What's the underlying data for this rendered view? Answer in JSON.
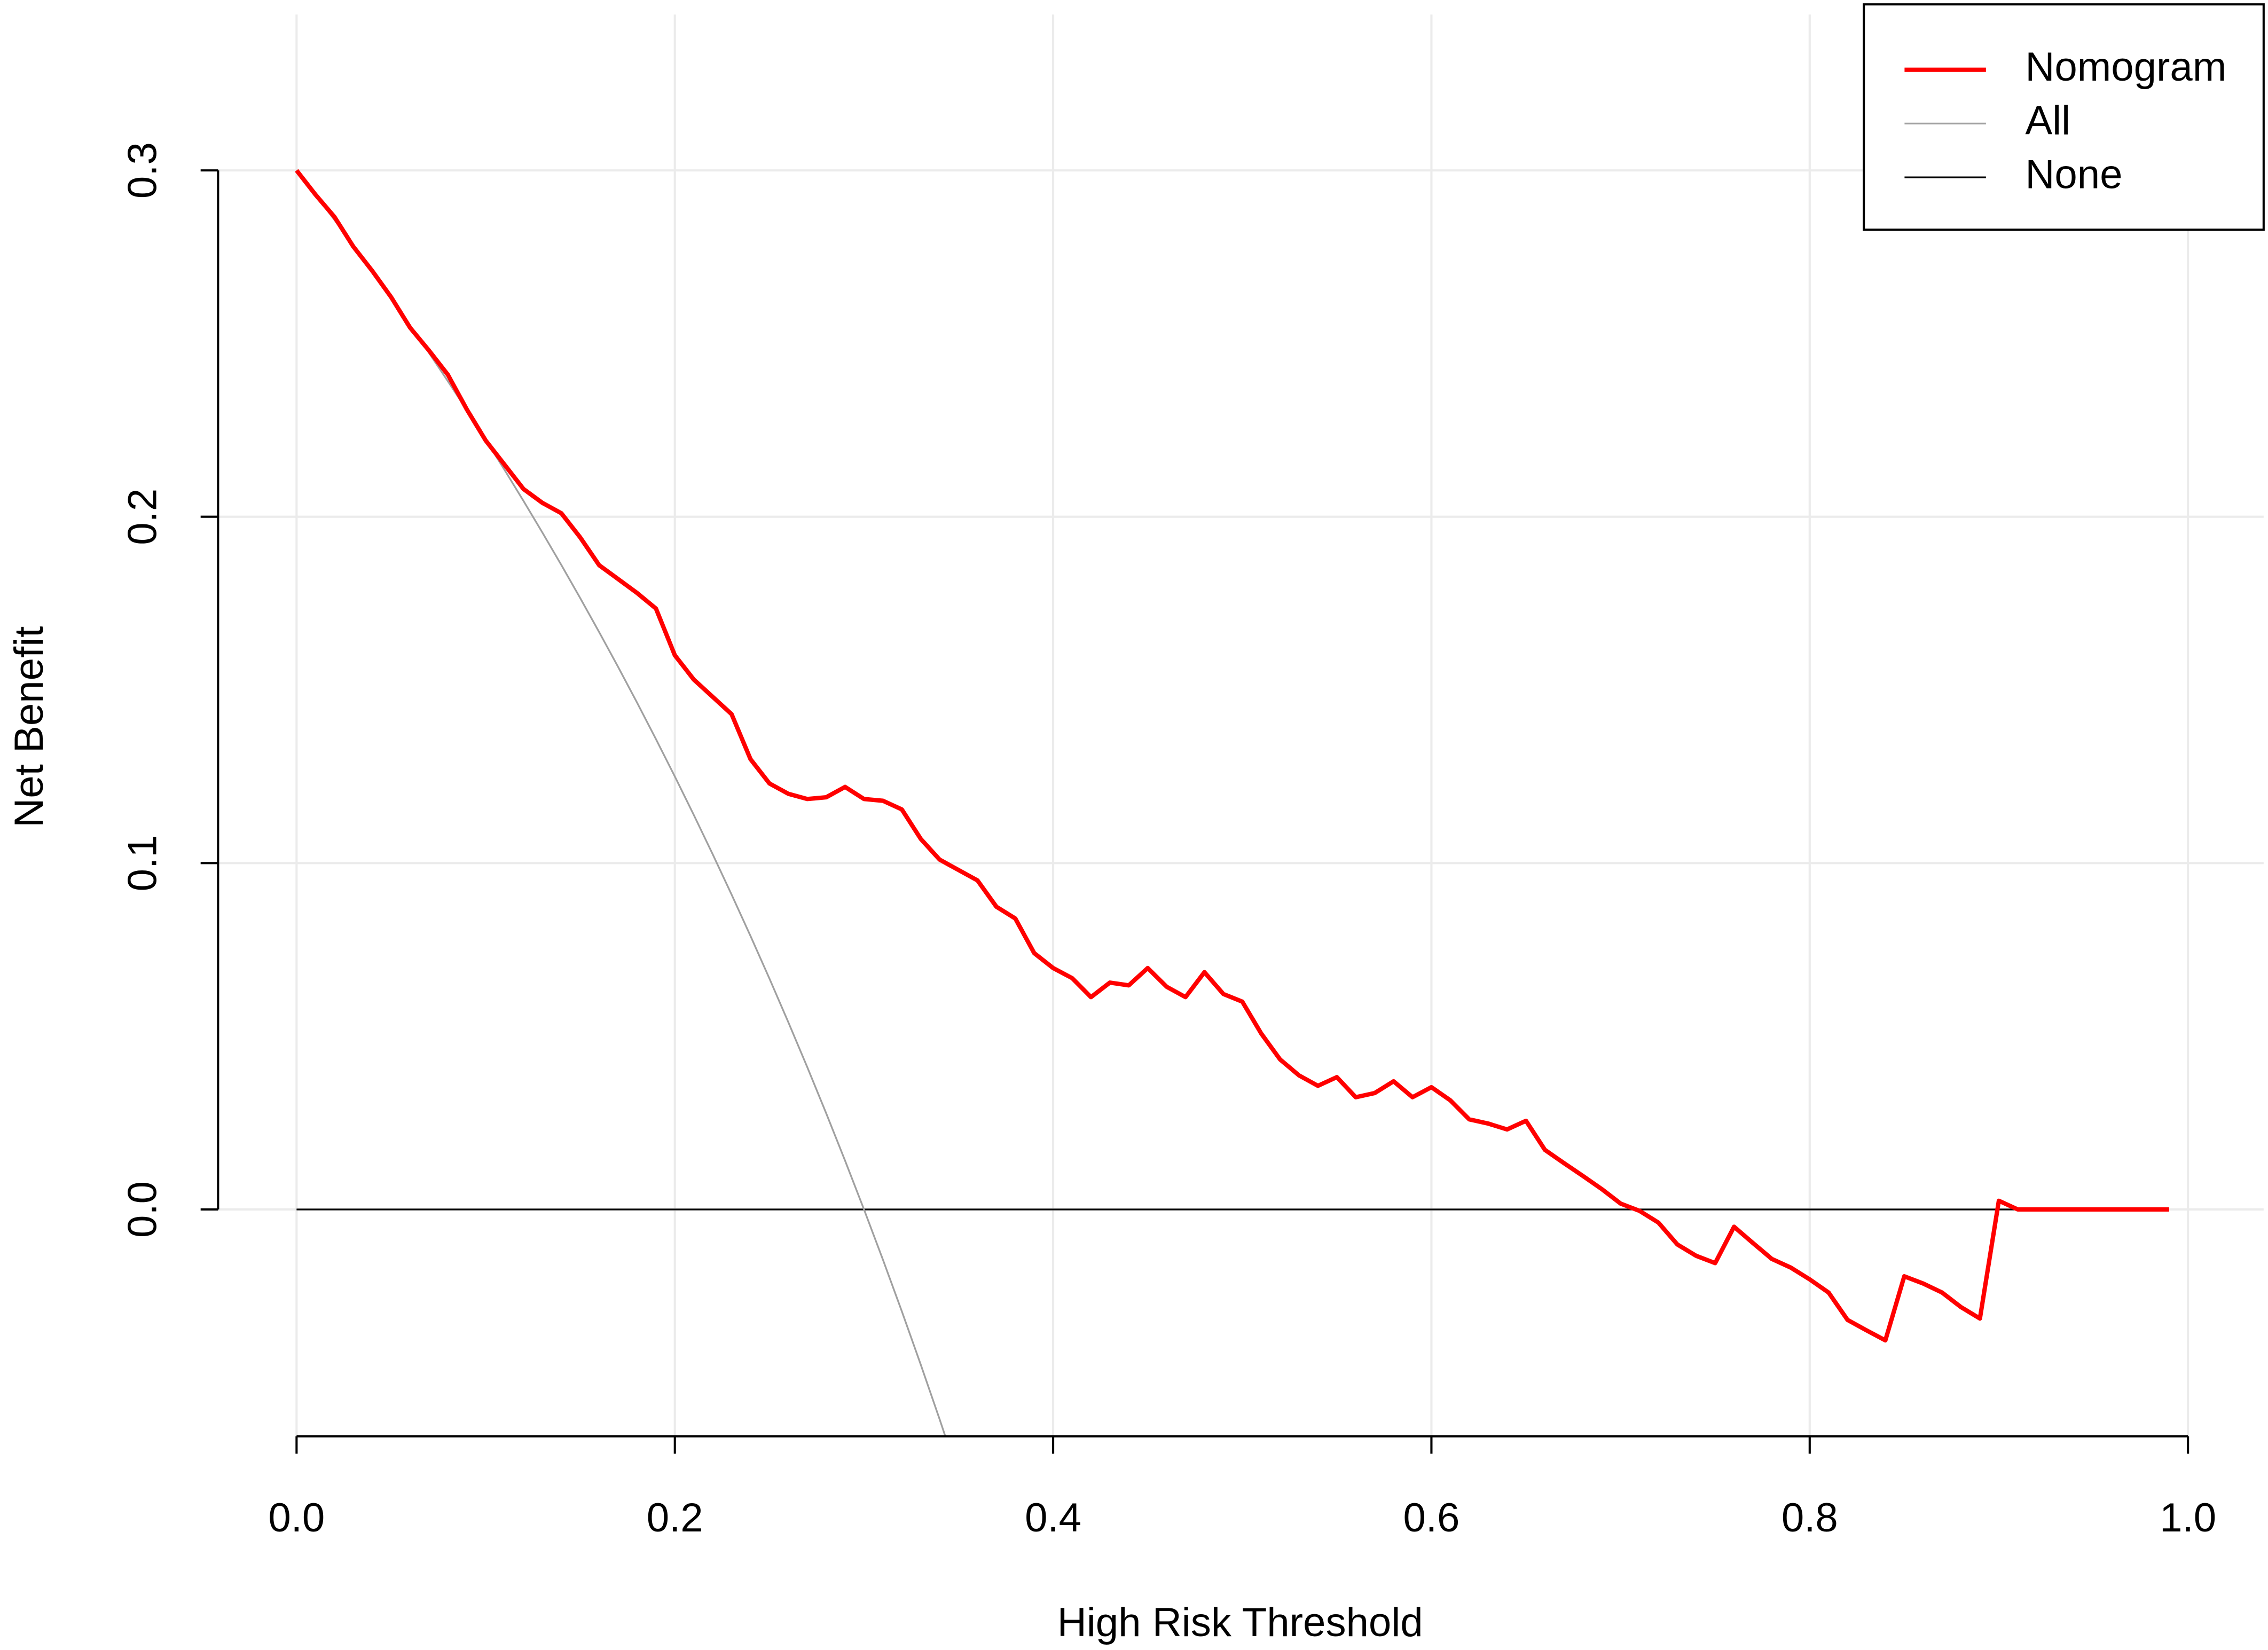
{
  "chart_data": {
    "type": "line",
    "xlabel": "High Risk Threshold",
    "ylabel": "Net Benefit",
    "xlim": [
      -0.0415,
      1.04
    ],
    "ylim": [
      -0.0655,
      0.345
    ],
    "xticks": [
      {
        "value": 0,
        "label": "0.0"
      },
      0.2,
      0.4,
      0.6,
      0.8,
      {
        "value": 1,
        "label": "1.0"
      }
    ],
    "yticks": [
      {
        "value": 0,
        "label": "0.0"
      },
      0.1,
      0.2,
      0.3
    ],
    "grid": true,
    "legend": "top-right",
    "series": [
      {
        "name": "Nomogram",
        "color": "#ff0000",
        "width": 3,
        "x": [
          0,
          0.01,
          0.02,
          0.03,
          0.04,
          0.05,
          0.06,
          0.07,
          0.08,
          0.09,
          0.1,
          0.11,
          0.12,
          0.13,
          0.14,
          0.15,
          0.16,
          0.17,
          0.18,
          0.19,
          0.2,
          0.21,
          0.22,
          0.23,
          0.24,
          0.25,
          0.26,
          0.27,
          0.28,
          0.29,
          0.3,
          0.31,
          0.32,
          0.33,
          0.34,
          0.35,
          0.36,
          0.37,
          0.38,
          0.39,
          0.4,
          0.41,
          0.42,
          0.43,
          0.44,
          0.45,
          0.46,
          0.47,
          0.48,
          0.49,
          0.5,
          0.51,
          0.52,
          0.53,
          0.54,
          0.55,
          0.56,
          0.57,
          0.58,
          0.59,
          0.6,
          0.61,
          0.62,
          0.63,
          0.64,
          0.65,
          0.66,
          0.67,
          0.68,
          0.69,
          0.7,
          0.71,
          0.72,
          0.73,
          0.74,
          0.75,
          0.76,
          0.77,
          0.78,
          0.79,
          0.8,
          0.81,
          0.82,
          0.83,
          0.84,
          0.85,
          0.86,
          0.87,
          0.88,
          0.89,
          0.9,
          0.91,
          0.92,
          0.93,
          0.94,
          0.95,
          0.96,
          0.97,
          0.98,
          0.99
        ],
        "values": [
          0.3,
          0.293,
          0.2866,
          0.278,
          0.271,
          0.2634,
          0.2546,
          0.248,
          0.241,
          0.231,
          0.222,
          0.215,
          0.208,
          0.204,
          0.201,
          0.194,
          0.186,
          0.182,
          0.178,
          0.1735,
          0.16,
          0.153,
          0.148,
          0.143,
          0.13,
          0.123,
          0.12,
          0.1185,
          0.119,
          0.122,
          0.1185,
          0.118,
          0.1155,
          0.107,
          0.101,
          0.098,
          0.095,
          0.0874,
          0.084,
          0.074,
          0.0697,
          0.0668,
          0.0613,
          0.0655,
          0.0647,
          0.0697,
          0.0643,
          0.0613,
          0.0685,
          0.0622,
          0.06,
          0.0508,
          0.0433,
          0.0387,
          0.0357,
          0.0382,
          0.0324,
          0.0336,
          0.037,
          0.0324,
          0.0353,
          0.0315,
          0.026,
          0.0248,
          0.0231,
          0.0256,
          0.0172,
          0.0134,
          0.0097,
          0.0059,
          0.0017,
          -0.0004,
          -0.0038,
          -0.0101,
          -0.0134,
          -0.0155,
          -0.005,
          -0.0097,
          -0.0143,
          -0.0168,
          -0.0202,
          -0.024,
          -0.0319,
          -0.0349,
          -0.0378,
          -0.0193,
          -0.0214,
          -0.024,
          -0.0282,
          -0.0315,
          0.0025,
          0,
          0,
          0,
          0,
          0,
          0,
          0,
          0,
          0
        ]
      },
      {
        "name": "All",
        "color": "#a0a0a0",
        "width": 1.2,
        "x": [
          0,
          0.01,
          0.02,
          0.03,
          0.04,
          0.05,
          0.06,
          0.07,
          0.08,
          0.09,
          0.1,
          0.11,
          0.12,
          0.13,
          0.14,
          0.15,
          0.16,
          0.17,
          0.18,
          0.19,
          0.2,
          0.21,
          0.22,
          0.23,
          0.24,
          0.25,
          0.26,
          0.27,
          0.28,
          0.29,
          0.3,
          0.31,
          0.32,
          0.33,
          0.34,
          0.35
        ],
        "values": [
          0.3,
          0.29293,
          0.28571,
          0.27835,
          0.27083,
          0.26316,
          0.25532,
          0.24731,
          0.23913,
          0.23077,
          0.22222,
          0.21348,
          0.20455,
          0.1954,
          0.18605,
          0.17647,
          0.16667,
          0.15663,
          0.14634,
          0.1358,
          0.125,
          0.11392,
          0.10256,
          0.09091,
          0.07895,
          0.06667,
          0.05405,
          0.0411,
          0.02778,
          0.01408,
          0,
          -0.01449,
          -0.02941,
          -0.04478,
          -0.06061,
          -0.07692
        ]
      },
      {
        "name": "None",
        "color": "#000000",
        "width": 1.2,
        "x": [
          0,
          0.99
        ],
        "values": [
          0,
          0
        ]
      }
    ]
  }
}
